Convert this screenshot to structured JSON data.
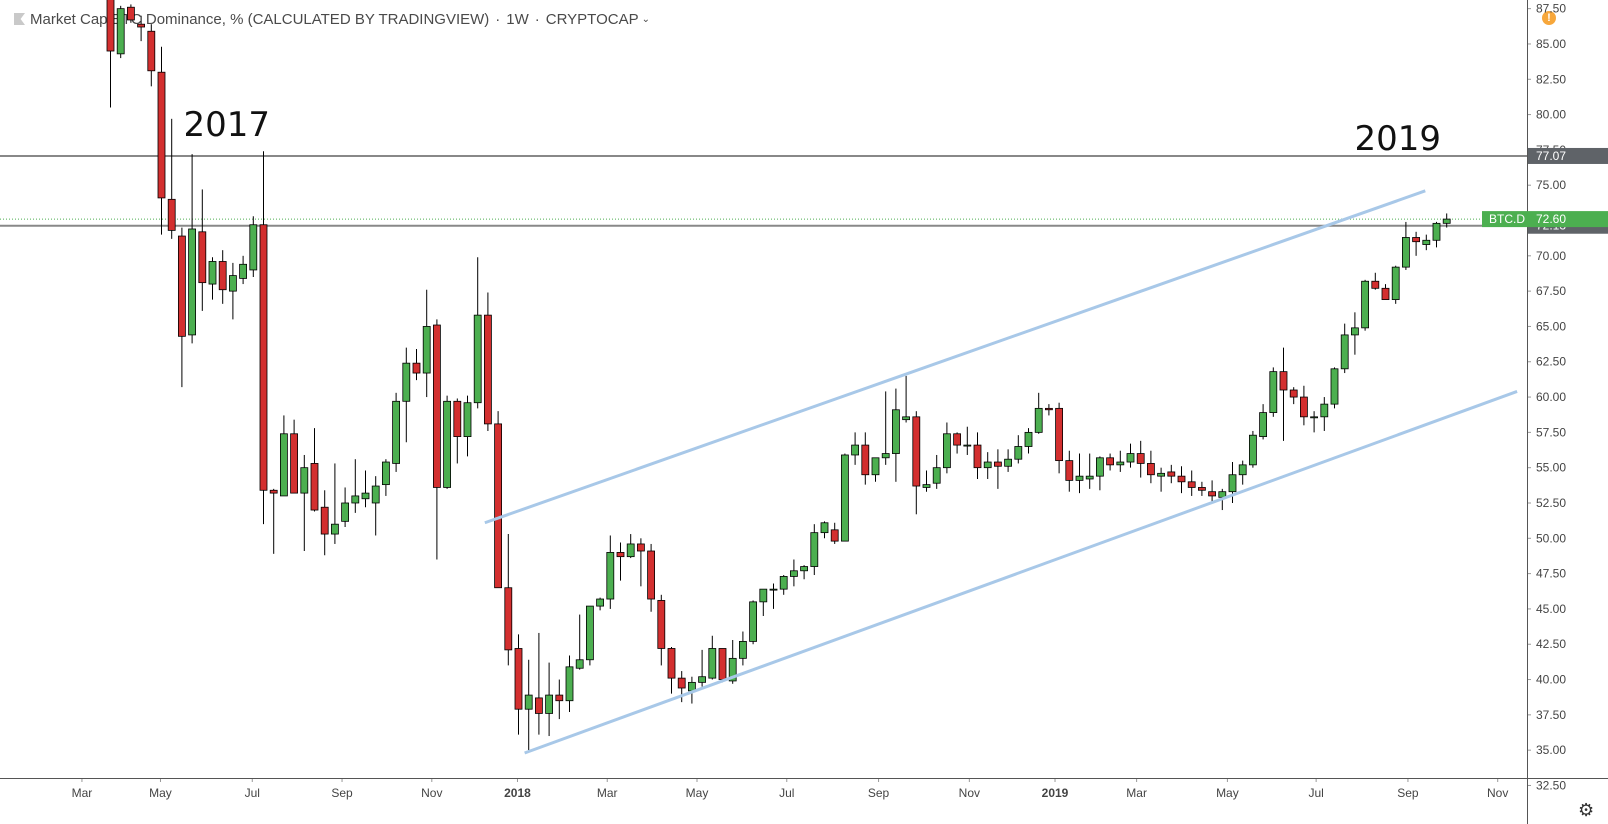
{
  "header": {
    "title": "Market Cap BTC Dominance, % (CALCULATED BY TRADINGVIEW)",
    "interval": "1W",
    "exchange": "CRYPTOCAP"
  },
  "alert_icon": "!",
  "colors": {
    "up": "#4caf50",
    "down": "#d32f2f",
    "trendline": "#a8c8e8",
    "hline": "#888888",
    "price_tag": "#4caf50",
    "level_tag": "#5f6368",
    "axis_text": "#444444"
  },
  "chart_data": {
    "type": "candlestick",
    "x_ticks": [
      "Mar",
      "May",
      "Jul",
      "Sep",
      "Nov",
      "2018",
      "Mar",
      "May",
      "Jul",
      "Sep",
      "Nov",
      "2019",
      "Mar",
      "May",
      "Jul",
      "Sep",
      "Nov"
    ],
    "y_ticks": [
      "87.50",
      "85.00",
      "82.50",
      "80.00",
      "77.50",
      "75.00",
      "72.50",
      "70.00",
      "67.50",
      "65.00",
      "62.50",
      "60.00",
      "57.50",
      "55.00",
      "52.50",
      "50.00",
      "47.50",
      "45.00",
      "42.50",
      "40.00",
      "37.50",
      "35.00",
      "32.50"
    ],
    "ylim": [
      32.5,
      87.9
    ],
    "candles": [
      [
        88.2,
        88.6,
        80.5,
        84.5
      ],
      [
        84.3,
        87.7,
        84.0,
        87.5
      ],
      [
        87.6,
        87.8,
        86.5,
        86.7
      ],
      [
        86.4,
        87.0,
        85.2,
        86.2
      ],
      [
        85.9,
        86.4,
        82.0,
        83.1
      ],
      [
        83.0,
        84.8,
        71.5,
        74.1
      ],
      [
        74.0,
        79.7,
        71.2,
        71.8
      ],
      [
        71.4,
        72.0,
        60.7,
        64.3
      ],
      [
        64.4,
        77.2,
        63.8,
        71.9
      ],
      [
        71.7,
        74.7,
        66.1,
        68.1
      ],
      [
        68.0,
        69.9,
        66.9,
        69.6
      ],
      [
        69.6,
        70.4,
        66.6,
        67.6
      ],
      [
        67.5,
        69.5,
        65.5,
        68.6
      ],
      [
        68.4,
        70.0,
        68.0,
        69.4
      ],
      [
        69.0,
        72.8,
        68.5,
        72.2
      ],
      [
        72.2,
        77.4,
        51.0,
        53.4
      ],
      [
        53.4,
        53.5,
        48.9,
        53.2
      ],
      [
        53.0,
        58.7,
        53.0,
        57.4
      ],
      [
        57.4,
        58.4,
        53.4,
        53.2
      ],
      [
        53.2,
        55.9,
        49.1,
        55.0
      ],
      [
        55.3,
        57.8,
        51.9,
        52.0
      ],
      [
        52.2,
        53.4,
        48.8,
        50.3
      ],
      [
        50.3,
        55.3,
        49.6,
        51.0
      ],
      [
        51.2,
        53.6,
        50.8,
        52.5
      ],
      [
        52.5,
        55.6,
        51.8,
        53.0
      ],
      [
        52.8,
        54.8,
        52.2,
        53.2
      ],
      [
        52.5,
        54.4,
        50.2,
        53.7
      ],
      [
        53.8,
        55.6,
        53.0,
        55.4
      ],
      [
        55.3,
        60.3,
        54.7,
        59.7
      ],
      [
        59.7,
        63.5,
        56.8,
        62.4
      ],
      [
        62.4,
        63.4,
        61.2,
        61.7
      ],
      [
        61.7,
        67.6,
        60.0,
        65.0
      ],
      [
        65.1,
        65.5,
        48.5,
        53.6
      ],
      [
        53.6,
        60.1,
        53.5,
        59.7
      ],
      [
        59.7,
        59.9,
        55.3,
        57.2
      ],
      [
        57.2,
        60.1,
        55.8,
        59.6
      ],
      [
        59.6,
        69.9,
        59.2,
        65.8
      ],
      [
        65.8,
        67.4,
        57.6,
        58.1
      ],
      [
        58.1,
        59.0,
        46.5,
        46.5
      ],
      [
        46.5,
        50.3,
        41.0,
        42.1
      ],
      [
        42.2,
        43.2,
        36.1,
        37.9
      ],
      [
        37.9,
        41.4,
        35.0,
        38.9
      ],
      [
        38.7,
        43.3,
        36.1,
        37.6
      ],
      [
        37.6,
        41.2,
        36.0,
        38.9
      ],
      [
        38.9,
        40.0,
        37.2,
        38.5
      ],
      [
        38.5,
        41.7,
        37.7,
        40.9
      ],
      [
        40.8,
        44.6,
        40.7,
        41.4
      ],
      [
        41.4,
        45.2,
        41.0,
        45.2
      ],
      [
        45.2,
        45.8,
        44.9,
        45.7
      ],
      [
        45.7,
        50.2,
        45.0,
        49.0
      ],
      [
        49.0,
        49.7,
        47.0,
        48.7
      ],
      [
        48.7,
        50.3,
        48.6,
        49.6
      ],
      [
        49.6,
        50.0,
        46.6,
        49.1
      ],
      [
        49.1,
        49.6,
        44.8,
        45.7
      ],
      [
        45.6,
        46.0,
        41.0,
        42.2
      ],
      [
        42.2,
        42.3,
        39.0,
        40.1
      ],
      [
        40.1,
        40.6,
        38.4,
        39.4
      ],
      [
        39.2,
        40.2,
        38.3,
        39.8
      ],
      [
        39.8,
        42.1,
        39.5,
        40.2
      ],
      [
        40.1,
        43.1,
        40.0,
        42.2
      ],
      [
        42.2,
        42.2,
        39.8,
        40.0
      ],
      [
        39.9,
        42.8,
        39.7,
        41.5
      ],
      [
        41.5,
        43.4,
        41.0,
        42.7
      ],
      [
        42.7,
        45.6,
        42.5,
        45.5
      ],
      [
        45.5,
        46.1,
        44.5,
        46.4
      ],
      [
        46.4,
        46.8,
        45.0,
        46.4
      ],
      [
        46.4,
        47.4,
        46.0,
        47.3
      ],
      [
        47.3,
        48.5,
        46.6,
        47.7
      ],
      [
        47.7,
        48.1,
        47.1,
        48.0
      ],
      [
        48.0,
        51.0,
        47.4,
        50.4
      ],
      [
        50.4,
        51.2,
        50.0,
        51.1
      ],
      [
        50.6,
        51.1,
        49.6,
        49.8
      ],
      [
        49.8,
        56.0,
        49.8,
        55.9
      ],
      [
        55.9,
        57.5,
        55.2,
        56.6
      ],
      [
        56.6,
        57.5,
        53.8,
        54.5
      ],
      [
        54.5,
        55.7,
        54.0,
        55.7
      ],
      [
        55.7,
        60.4,
        55.2,
        56.0
      ],
      [
        56.0,
        60.6,
        54.0,
        59.1
      ],
      [
        58.4,
        61.5,
        58.2,
        58.6
      ],
      [
        58.6,
        59.0,
        51.7,
        53.7
      ],
      [
        53.6,
        54.8,
        53.3,
        53.8
      ],
      [
        53.9,
        55.9,
        53.5,
        55.0
      ],
      [
        55.0,
        58.2,
        54.6,
        57.4
      ],
      [
        57.4,
        57.5,
        56.0,
        56.6
      ],
      [
        56.6,
        57.9,
        55.9,
        56.6
      ],
      [
        56.6,
        57.5,
        54.2,
        55.0
      ],
      [
        55.0,
        56.1,
        54.2,
        55.4
      ],
      [
        55.4,
        56.3,
        53.5,
        55.1
      ],
      [
        55.1,
        56.3,
        54.7,
        55.6
      ],
      [
        55.6,
        57.3,
        55.3,
        56.5
      ],
      [
        56.5,
        57.8,
        56.0,
        57.5
      ],
      [
        57.5,
        60.3,
        57.4,
        59.2
      ],
      [
        59.2,
        59.5,
        58.7,
        59.1
      ],
      [
        59.2,
        59.6,
        54.6,
        55.5
      ],
      [
        55.5,
        56.2,
        53.3,
        54.1
      ],
      [
        54.1,
        56.0,
        53.2,
        54.4
      ],
      [
        54.2,
        56.0,
        53.5,
        54.4
      ],
      [
        54.4,
        55.8,
        53.4,
        55.7
      ],
      [
        55.7,
        56.0,
        54.8,
        55.2
      ],
      [
        55.2,
        56.2,
        54.7,
        55.4
      ],
      [
        55.4,
        56.7,
        55.0,
        56.0
      ],
      [
        56.0,
        56.9,
        54.3,
        55.3
      ],
      [
        55.3,
        56.2,
        53.9,
        54.5
      ],
      [
        54.4,
        55.0,
        53.3,
        54.6
      ],
      [
        54.7,
        55.2,
        53.9,
        54.4
      ],
      [
        54.4,
        55.1,
        53.2,
        54.0
      ],
      [
        54.0,
        54.8,
        53.0,
        53.6
      ],
      [
        53.6,
        54.0,
        53.0,
        53.4
      ],
      [
        53.3,
        54.1,
        52.5,
        53.0
      ],
      [
        52.9,
        53.5,
        52.0,
        53.3
      ],
      [
        53.3,
        55.4,
        52.5,
        54.5
      ],
      [
        54.5,
        55.5,
        53.8,
        55.2
      ],
      [
        55.2,
        57.6,
        55.0,
        57.3
      ],
      [
        57.2,
        59.5,
        57.0,
        58.9
      ],
      [
        58.9,
        62.1,
        58.6,
        61.8
      ],
      [
        61.8,
        63.5,
        56.9,
        60.5
      ],
      [
        60.5,
        60.7,
        59.5,
        60.0
      ],
      [
        60.0,
        60.8,
        58.0,
        58.6
      ],
      [
        58.6,
        59.0,
        57.5,
        58.6
      ],
      [
        58.6,
        60.0,
        57.6,
        59.5
      ],
      [
        59.5,
        62.1,
        59.2,
        62.0
      ],
      [
        62.0,
        65.2,
        61.7,
        64.4
      ],
      [
        64.4,
        66.0,
        63.0,
        64.9
      ],
      [
        64.9,
        68.3,
        64.7,
        68.2
      ],
      [
        68.2,
        68.8,
        67.6,
        67.7
      ],
      [
        67.7,
        68.0,
        66.9,
        66.9
      ],
      [
        66.9,
        69.3,
        66.6,
        69.2
      ],
      [
        69.2,
        72.4,
        69.0,
        71.3
      ],
      [
        71.3,
        71.7,
        70.0,
        71.0
      ],
      [
        70.8,
        71.5,
        70.4,
        71.1
      ],
      [
        71.1,
        72.4,
        70.6,
        72.3
      ],
      [
        72.3,
        73.0,
        72.0,
        72.6
      ]
    ],
    "trend_lines": [
      {
        "from": [
          "Dec 2017",
          51.1
        ],
        "to": [
          "Oct 2019",
          74.6
        ]
      },
      {
        "from": [
          "Jan 2018",
          34.8
        ],
        "to": [
          "Dec 2019",
          60.4
        ]
      }
    ],
    "horizontal_lines": [
      77.07,
      72.13
    ],
    "annotations": [
      "2017",
      "2019"
    ],
    "current_price": {
      "symbol": "BTC.D",
      "value": "72.60"
    },
    "level_labels": [
      "77.07",
      "72.13"
    ]
  }
}
